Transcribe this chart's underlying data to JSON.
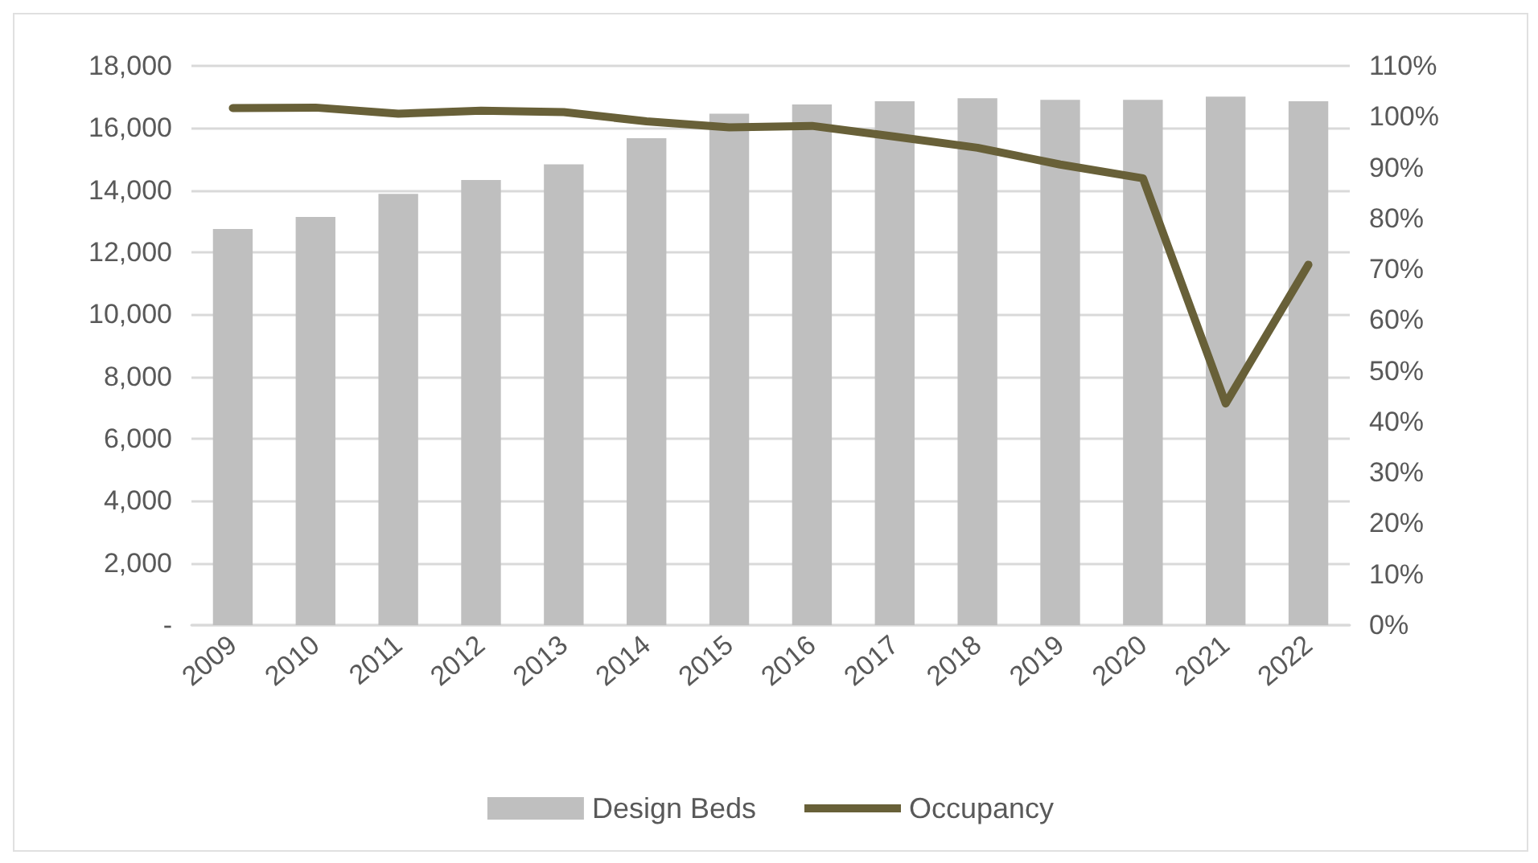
{
  "chart_data": {
    "type": "bar",
    "categories": [
      "2009",
      "2010",
      "2011",
      "2012",
      "2013",
      "2014",
      "2015",
      "2016",
      "2017",
      "2018",
      "2019",
      "2020",
      "2021",
      "2022"
    ],
    "series": [
      {
        "name": "Design Beds",
        "color": "#bfbfbf",
        "values": [
          12750,
          13140,
          13880,
          14330,
          14830,
          15670,
          16460,
          16760,
          16860,
          16960,
          16910,
          16910,
          17010,
          16860
        ]
      },
      {
        "name": "Occupancy",
        "type": "line",
        "axis": "y2",
        "color": "#686038",
        "values": [
          101.7,
          101.8,
          100.6,
          101.2,
          100.9,
          99.1,
          97.9,
          98.2,
          96.1,
          93.9,
          90.6,
          87.9,
          43.6,
          70.9
        ]
      }
    ],
    "ylim": [
      0,
      18000
    ],
    "yticks": [
      {
        "value": 0,
        "label": "-"
      },
      {
        "value": 2000,
        "label": "2,000"
      },
      {
        "value": 4000,
        "label": "4,000"
      },
      {
        "value": 6000,
        "label": "6,000"
      },
      {
        "value": 8000,
        "label": "8,000"
      },
      {
        "value": 10000,
        "label": "10,000"
      },
      {
        "value": 12000,
        "label": "12,000"
      },
      {
        "value": 14000,
        "label": "14,000"
      },
      {
        "value": 16000,
        "label": "16,000"
      },
      {
        "value": 18000,
        "label": "18,000"
      }
    ],
    "y2lim": [
      0,
      110
    ],
    "y2ticks": [
      {
        "value": 0,
        "label": "0%"
      },
      {
        "value": 10,
        "label": "10%"
      },
      {
        "value": 20,
        "label": "20%"
      },
      {
        "value": 30,
        "label": "30%"
      },
      {
        "value": 40,
        "label": "40%"
      },
      {
        "value": 50,
        "label": "50%"
      },
      {
        "value": 60,
        "label": "60%"
      },
      {
        "value": 70,
        "label": "70%"
      },
      {
        "value": 80,
        "label": "80%"
      },
      {
        "value": 90,
        "label": "90%"
      },
      {
        "value": 100,
        "label": "100%"
      },
      {
        "value": 110,
        "label": "110%"
      }
    ],
    "grid": "y",
    "legend": "bottom",
    "marker": "none"
  }
}
